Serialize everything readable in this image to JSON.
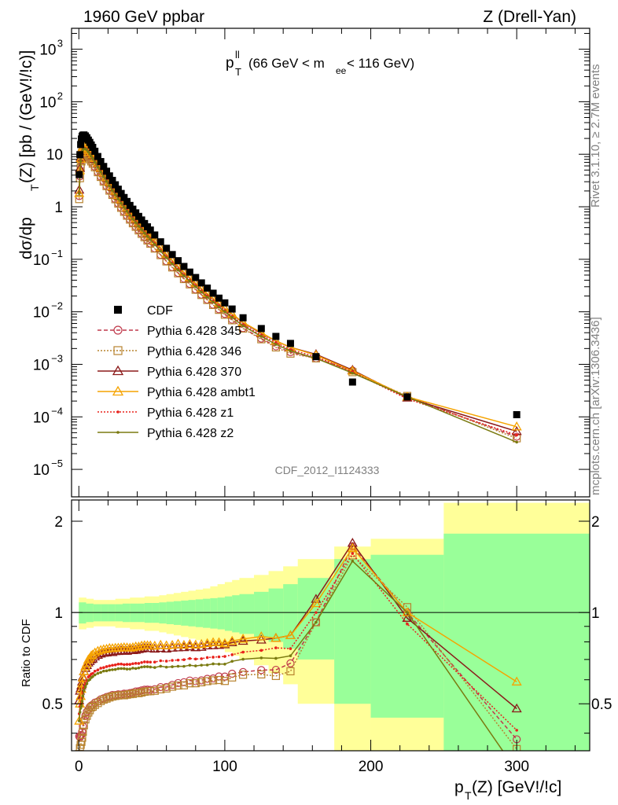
{
  "header": {
    "left_title": "1960 GeV ppbar",
    "right_title": "Z (Drell-Yan)",
    "observable_main": "p",
    "observable_sup": "ll",
    "observable_sub": "T",
    "observable_range_a": "(66 GeV < m",
    "observable_range_sub": "ee",
    "observable_range_b": " < 116 GeV)",
    "analysis_id": "CDF_2012_I1124333"
  },
  "side_labels": {
    "rivet": "Rivet 3.1.10, ≥ 2.7M events",
    "mcplots": "mcplots.cern.ch [arXiv:1306.3436]"
  },
  "axes": {
    "y_main_label": "dσ/dp_T(Z) [pb / (GeV!/!c)]",
    "y_main_a": "dσ/dp",
    "y_main_sub": "T",
    "y_main_b": "(Z) [pb / (GeV!/!c)]",
    "y_ratio_label": "Ratio to CDF",
    "x_label_a": "p",
    "x_label_sub": "T",
    "x_label_b": "(Z) [GeV!/!c]",
    "x_ticks": [
      "0",
      "100",
      "200",
      "300"
    ],
    "y_ratio_ticks": [
      "0.5",
      "1",
      "2"
    ],
    "y_main_ticks": [
      {
        "base": "10",
        "exp": "3"
      },
      {
        "base": "10",
        "exp": "2"
      },
      {
        "base": "10",
        "exp": ""
      },
      {
        "base": "1",
        "exp": ""
      },
      {
        "base": "10",
        "exp": "−1"
      },
      {
        "base": "10",
        "exp": "−2"
      },
      {
        "base": "10",
        "exp": "−3"
      },
      {
        "base": "10",
        "exp": "−4"
      },
      {
        "base": "10",
        "exp": "−5"
      }
    ]
  },
  "legend": [
    {
      "label": "CDF",
      "color": "#000000",
      "marker": "square-filled",
      "line": "none"
    },
    {
      "label": "Pythia 6.428 345",
      "color": "#c0394b",
      "marker": "circle-open",
      "line": "dashed"
    },
    {
      "label": "Pythia 6.428 346",
      "color": "#b8832f",
      "marker": "square-open",
      "line": "dotted"
    },
    {
      "label": "Pythia 6.428 370",
      "color": "#8b1a1a",
      "marker": "triangle-open",
      "line": "solid"
    },
    {
      "label": "Pythia 6.428 ambt1",
      "color": "#f5a300",
      "marker": "triangle-open",
      "line": "solid"
    },
    {
      "label": "Pythia 6.428 z1",
      "color": "#e8221c",
      "marker": "dot",
      "line": "dotted"
    },
    {
      "label": "Pythia 6.428 z2",
      "color": "#7a7a10",
      "marker": "dot",
      "line": "solid"
    }
  ],
  "chart_data": [
    {
      "type": "scatter",
      "panel": "main",
      "xlabel": "p_T(Z) [GeV!/!c]",
      "ylabel": "dσ/dp_T(Z) [pb / (GeV!/!c)]",
      "xlim": [
        -5,
        350
      ],
      "ylim": [
        3e-06,
        2500
      ],
      "yscale": "log",
      "x": [
        0.25,
        0.75,
        1.25,
        1.75,
        2.25,
        2.75,
        3.5,
        4.5,
        5.5,
        6.5,
        7.5,
        8.5,
        9.5,
        11,
        13,
        15,
        17,
        19,
        21,
        23,
        25,
        27,
        29,
        31,
        33,
        35,
        37,
        39,
        41,
        43,
        45,
        47,
        49,
        52,
        56,
        60,
        64,
        68,
        72,
        76,
        80,
        84,
        88,
        92,
        96,
        100,
        105,
        112.5,
        125,
        135,
        145,
        162.5,
        187.5,
        225,
        300
      ],
      "series": [
        {
          "name": "CDF",
          "color": "#000000",
          "values": [
            4.1,
            9.8,
            15.3,
            19.5,
            22.0,
            23.0,
            23.3,
            22.3,
            20.6,
            18.6,
            16.8,
            15.0,
            13.5,
            11.4,
            9.05,
            7.25,
            5.85,
            4.75,
            3.87,
            3.18,
            2.62,
            2.16,
            1.79,
            1.5,
            1.26,
            1.06,
            0.9,
            0.765,
            0.655,
            0.56,
            0.48,
            0.415,
            0.36,
            0.29,
            0.215,
            0.162,
            0.123,
            0.094,
            0.073,
            0.057,
            0.045,
            0.0355,
            0.0283,
            0.0226,
            0.0182,
            0.0148,
            0.0113,
            0.0077,
            0.0048,
            0.0034,
            0.0025,
            0.0014,
            0.00046,
            0.00024,
            0.00011
          ]
        },
        {
          "name": "Pythia 6.428 345",
          "color": "#c0394b",
          "values": [
            1.6,
            3.8,
            6.0,
            7.7,
            8.9,
            9.7,
            10.3,
            10.2,
            9.7,
            8.9,
            8.2,
            7.4,
            6.7,
            5.75,
            4.6,
            3.75,
            3.05,
            2.5,
            2.05,
            1.7,
            1.4,
            1.16,
            0.96,
            0.81,
            0.68,
            0.575,
            0.49,
            0.42,
            0.36,
            0.31,
            0.267,
            0.231,
            0.2,
            0.162,
            0.122,
            0.092,
            0.071,
            0.055,
            0.043,
            0.034,
            0.0267,
            0.0212,
            0.0171,
            0.0137,
            0.0112,
            0.0091,
            0.0071,
            0.0049,
            0.0031,
            0.0022,
            0.0017,
            0.0013,
            0.00076,
            0.00024,
            4.2e-05
          ]
        },
        {
          "name": "Pythia 6.428 346",
          "color": "#b8832f",
          "values": [
            1.4,
            3.5,
            5.6,
            7.3,
            8.5,
            9.3,
            9.9,
            9.9,
            9.4,
            8.7,
            8.0,
            7.3,
            6.6,
            5.65,
            4.55,
            3.7,
            3.02,
            2.47,
            2.03,
            1.68,
            1.39,
            1.15,
            0.955,
            0.8,
            0.675,
            0.57,
            0.485,
            0.415,
            0.355,
            0.305,
            0.263,
            0.228,
            0.198,
            0.16,
            0.12,
            0.091,
            0.07,
            0.054,
            0.042,
            0.0333,
            0.0263,
            0.0209,
            0.0168,
            0.0135,
            0.0109,
            0.0088,
            0.0069,
            0.0048,
            0.003,
            0.0021,
            0.0016,
            0.0013,
            0.00071,
            0.00025,
            3.9e-05
          ]
        },
        {
          "name": "Pythia 6.428 370",
          "color": "#8b1a1a",
          "values": [
            2.1,
            5.4,
            8.6,
            11.2,
            13.0,
            14.1,
            14.9,
            14.6,
            13.8,
            12.7,
            11.6,
            10.5,
            9.5,
            8.15,
            6.55,
            5.3,
            4.3,
            3.5,
            2.87,
            2.35,
            1.95,
            1.61,
            1.34,
            1.12,
            0.94,
            0.795,
            0.675,
            0.575,
            0.495,
            0.425,
            0.366,
            0.316,
            0.274,
            0.22,
            0.164,
            0.123,
            0.094,
            0.072,
            0.056,
            0.044,
            0.0345,
            0.0273,
            0.022,
            0.0176,
            0.0142,
            0.0116,
            0.009,
            0.0062,
            0.0039,
            0.0028,
            0.0021,
            0.00155,
            0.00078,
            0.00023,
            5.3e-05
          ]
        },
        {
          "name": "Pythia 6.428 ambt1",
          "color": "#f5a300",
          "values": [
            1.8,
            4.9,
            8.1,
            10.9,
            12.8,
            14.0,
            14.9,
            14.8,
            14.0,
            13.0,
            11.9,
            10.8,
            9.8,
            8.4,
            6.75,
            5.45,
            4.42,
            3.6,
            2.95,
            2.42,
            2.0,
            1.65,
            1.37,
            1.15,
            0.965,
            0.81,
            0.69,
            0.59,
            0.505,
            0.435,
            0.374,
            0.323,
            0.28,
            0.225,
            0.168,
            0.126,
            0.096,
            0.074,
            0.057,
            0.0448,
            0.0352,
            0.0279,
            0.0224,
            0.018,
            0.0145,
            0.0117,
            0.0091,
            0.0063,
            0.004,
            0.0028,
            0.0021,
            0.0015,
            0.00075,
            0.00024,
            6.5e-05
          ]
        },
        {
          "name": "Pythia 6.428 z1",
          "color": "#e8221c",
          "values": [
            1.9,
            4.8,
            7.6,
            9.9,
            11.5,
            12.5,
            13.2,
            13.0,
            12.3,
            11.4,
            10.4,
            9.4,
            8.5,
            7.3,
            5.85,
            4.75,
            3.85,
            3.15,
            2.58,
            2.13,
            1.76,
            1.46,
            1.21,
            1.01,
            0.85,
            0.715,
            0.61,
            0.52,
            0.445,
            0.383,
            0.33,
            0.285,
            0.247,
            0.199,
            0.149,
            0.112,
            0.0855,
            0.0655,
            0.051,
            0.0402,
            0.0316,
            0.025,
            0.0201,
            0.0161,
            0.013,
            0.0106,
            0.0082,
            0.0057,
            0.0036,
            0.0026,
            0.0019,
            0.0014,
            0.00072,
            0.00022,
            4.5e-05
          ]
        },
        {
          "name": "Pythia 6.428 z2",
          "color": "#7a7a10",
          "values": [
            1.8,
            4.6,
            7.4,
            9.6,
            11.2,
            12.2,
            12.9,
            12.7,
            12.0,
            11.1,
            10.1,
            9.15,
            8.3,
            7.1,
            5.7,
            4.6,
            3.75,
            3.05,
            2.5,
            2.06,
            1.7,
            1.41,
            1.17,
            0.98,
            0.82,
            0.69,
            0.59,
            0.5,
            0.43,
            0.37,
            0.318,
            0.275,
            0.238,
            0.191,
            0.143,
            0.107,
            0.0815,
            0.0625,
            0.0485,
            0.0382,
            0.03,
            0.0238,
            0.019,
            0.0153,
            0.0123,
            0.01,
            0.0078,
            0.0054,
            0.0034,
            0.0024,
            0.0018,
            0.0013,
            0.00068,
            0.00024,
            3.3e-05
          ]
        }
      ]
    },
    {
      "type": "scatter",
      "panel": "ratio",
      "ylabel": "Ratio to CDF",
      "xlim": [
        -5,
        350
      ],
      "ylim": [
        0.35,
        2.35
      ],
      "yscale": "log",
      "reference_line": 1,
      "uncertainty_bands": {
        "bin_edges": [
          0,
          5,
          10,
          15,
          20,
          25,
          30,
          35,
          40,
          45,
          50,
          55,
          60,
          65,
          70,
          75,
          80,
          85,
          90,
          95,
          100,
          105,
          110,
          120,
          130,
          140,
          150,
          175,
          200,
          250,
          350
        ],
        "stat_half_width": [
          0.08,
          0.07,
          0.065,
          0.065,
          0.065,
          0.065,
          0.07,
          0.07,
          0.07,
          0.075,
          0.075,
          0.08,
          0.085,
          0.09,
          0.095,
          0.1,
          0.105,
          0.11,
          0.115,
          0.12,
          0.13,
          0.14,
          0.15,
          0.17,
          0.2,
          0.24,
          0.3,
          0.5,
          0.55,
          0.82,
          0.82
        ],
        "total_half_width": [
          0.12,
          0.11,
          0.1,
          0.1,
          0.1,
          0.11,
          0.11,
          0.12,
          0.12,
          0.13,
          0.13,
          0.14,
          0.15,
          0.16,
          0.17,
          0.18,
          0.19,
          0.2,
          0.22,
          0.24,
          0.26,
          0.28,
          0.3,
          0.33,
          0.37,
          0.42,
          0.5,
          0.65,
          0.75,
          1.3,
          1.3
        ],
        "stat_color": "#99ff99",
        "total_color": "#ffff99"
      }
    }
  ]
}
